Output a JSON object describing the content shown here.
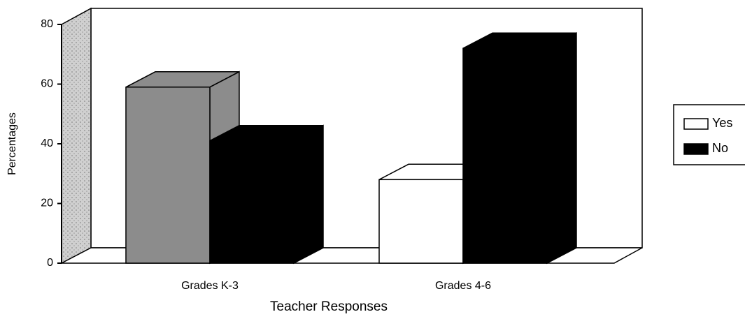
{
  "chart_data": {
    "type": "bar3d",
    "categories": [
      "Grades K-3",
      "Grades 4-6"
    ],
    "series": [
      {
        "name": "Yes",
        "color": "#ffffff",
        "point_colors": [
          "#8c8c8c",
          "#ffffff"
        ],
        "values": [
          59,
          28
        ]
      },
      {
        "name": "No",
        "color": "#000000",
        "values": [
          41,
          72
        ]
      }
    ],
    "ylim": [
      0,
      80
    ],
    "yticks": [
      0,
      20,
      40,
      60,
      80
    ],
    "ylabel": "Percentages",
    "xlabel": "Teacher Responses",
    "legend": "right"
  }
}
